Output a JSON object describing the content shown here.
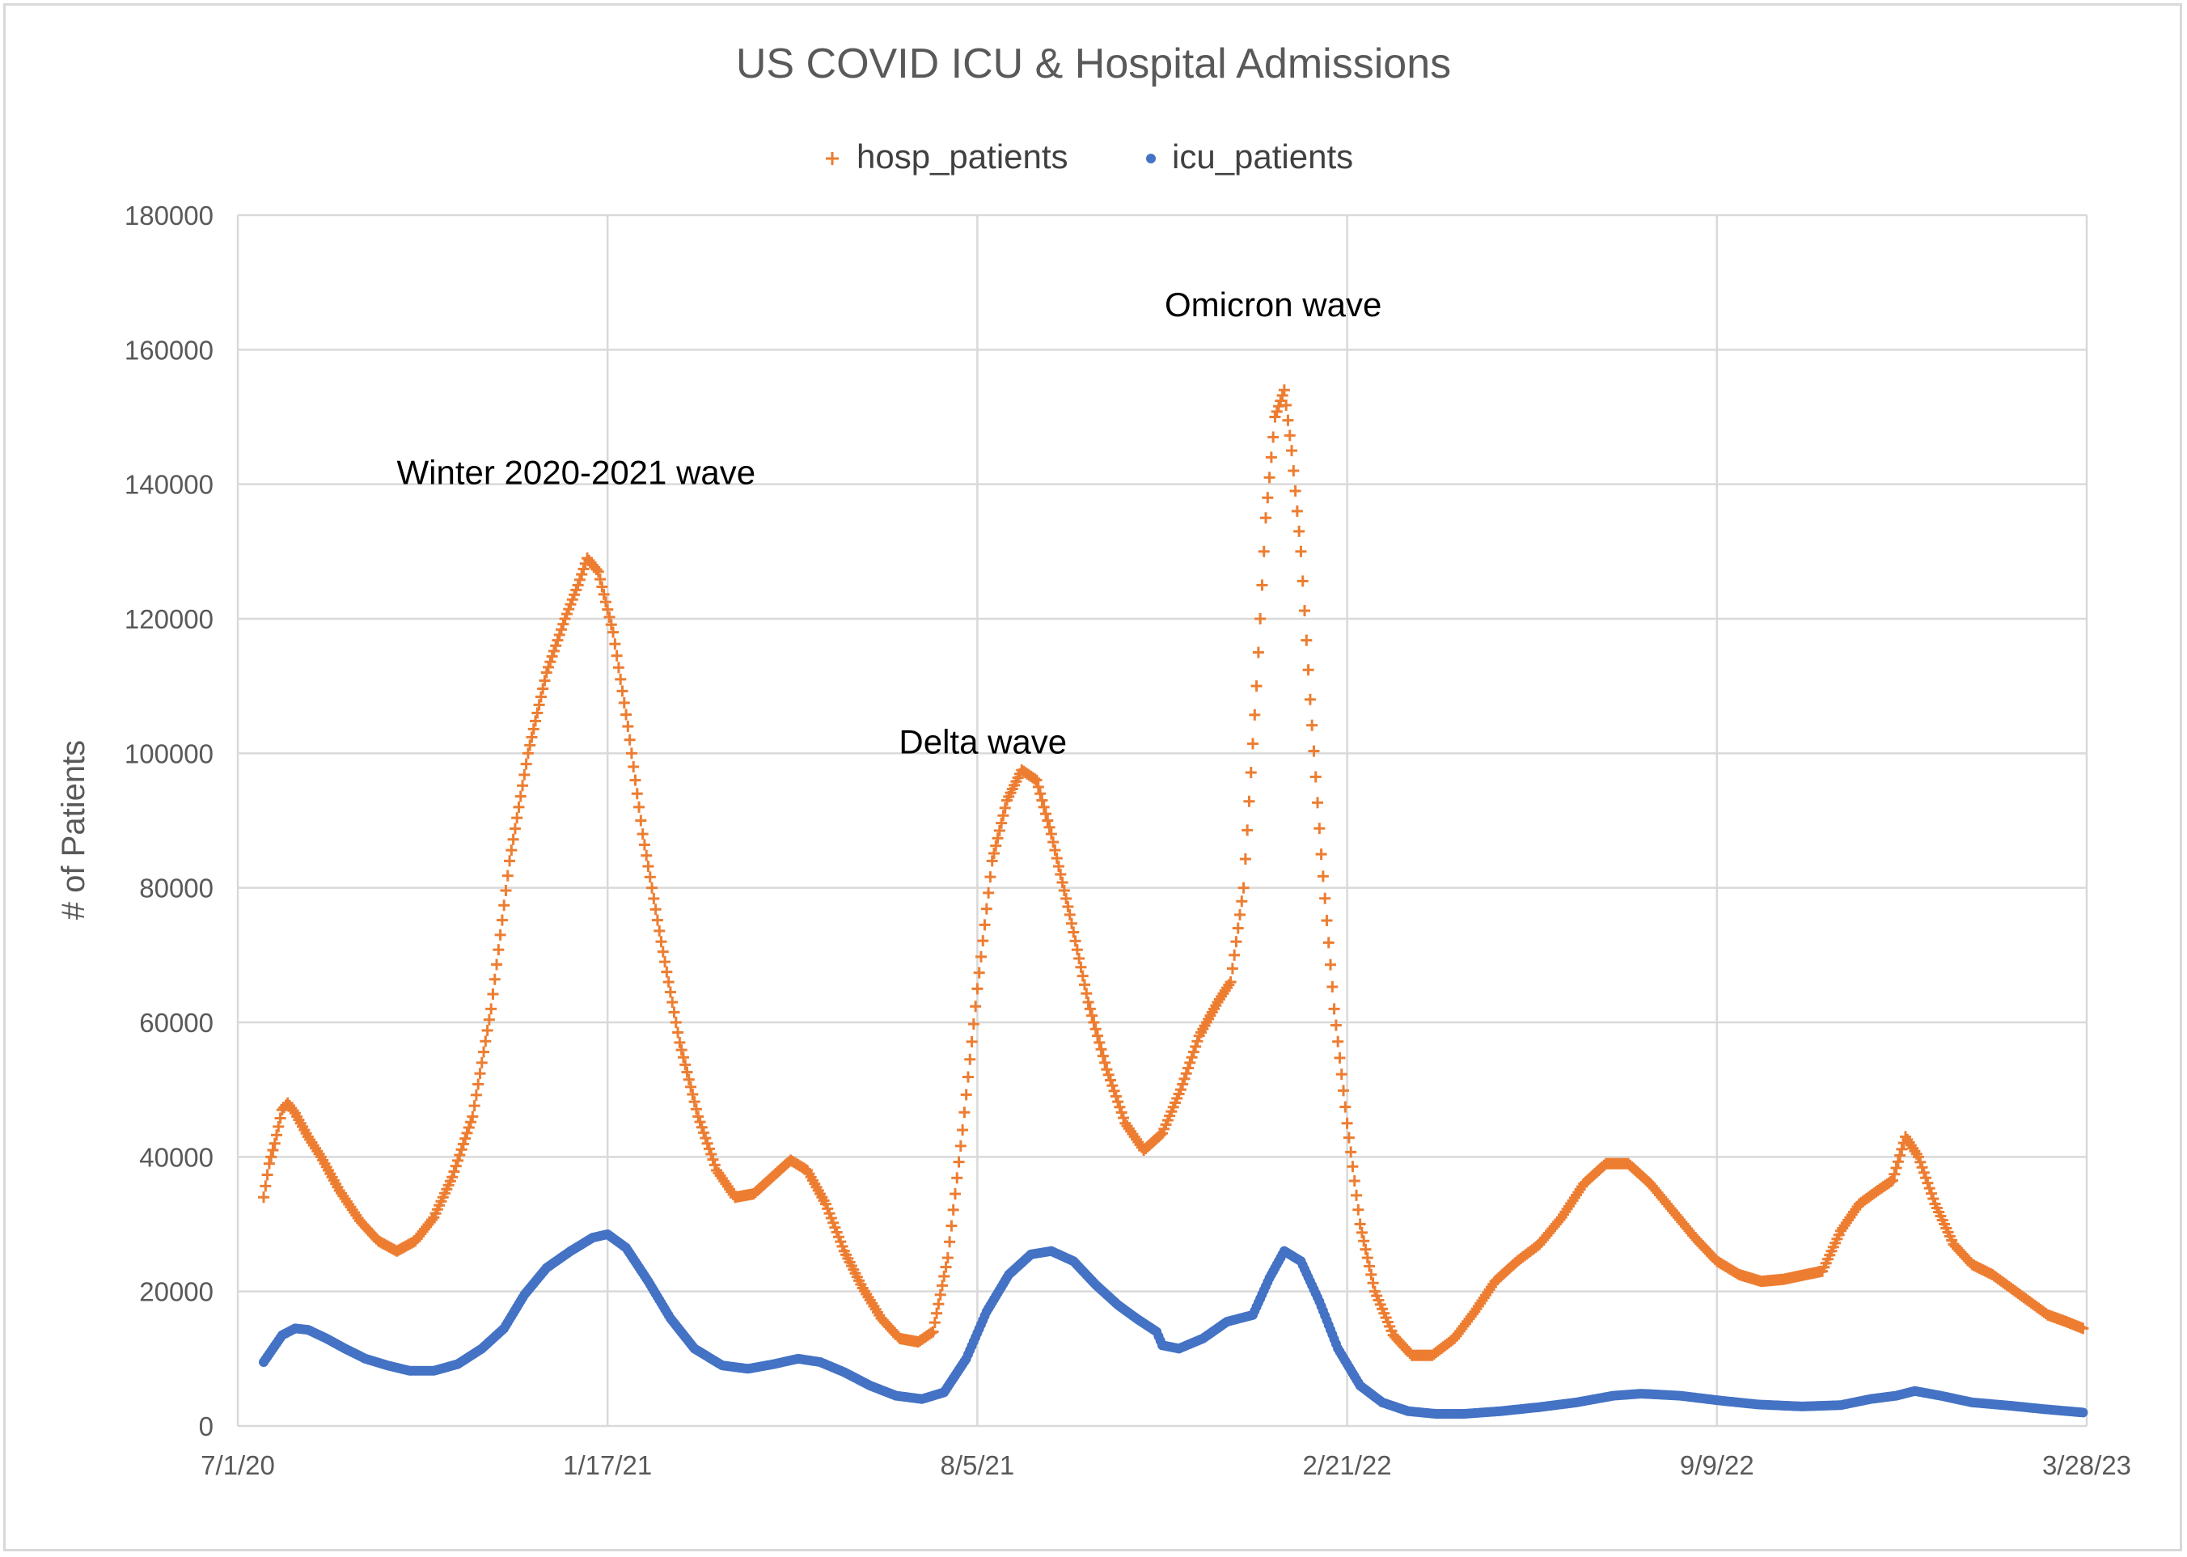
{
  "chart_data": {
    "type": "scatter",
    "title": "US COVID ICU & Hospital Admissions",
    "xlabel": "",
    "ylabel": "# of  Patients",
    "ylim": [
      0,
      180000
    ],
    "y_ticks": [
      "0",
      "20000",
      "40000",
      "60000",
      "80000",
      "100000",
      "120000",
      "140000",
      "160000",
      "180000"
    ],
    "x_ticks": [
      "7/1/20",
      "1/17/21",
      "8/5/21",
      "2/21/22",
      "9/9/22",
      "3/28/23"
    ],
    "xlim": [
      "2020-07-01",
      "2023-03-28"
    ],
    "grid": true,
    "legend_position": "top",
    "annotations": [
      {
        "text": "Winter 2020-2021 wave",
        "x": "2020-12-31",
        "y": 140000
      },
      {
        "text": "Delta wave",
        "x": "2021-08-08",
        "y": 100000
      },
      {
        "text": "Omicron wave",
        "x": "2022-01-12",
        "y": 165000
      }
    ],
    "series": [
      {
        "name": "hosp_patients",
        "marker": "plus",
        "color": "#ed7d31",
        "points": [
          [
            "2020-07-15",
            34000
          ],
          [
            "2020-07-18",
            39000
          ],
          [
            "2020-07-21",
            42000
          ],
          [
            "2020-07-25",
            47000
          ],
          [
            "2020-07-28",
            48000
          ],
          [
            "2020-08-01",
            46500
          ],
          [
            "2020-08-08",
            43000
          ],
          [
            "2020-08-15",
            40000
          ],
          [
            "2020-08-25",
            35000
          ],
          [
            "2020-09-05",
            30500
          ],
          [
            "2020-09-15",
            27500
          ],
          [
            "2020-09-25",
            26000
          ],
          [
            "2020-10-05",
            27500
          ],
          [
            "2020-10-15",
            31000
          ],
          [
            "2020-10-25",
            37000
          ],
          [
            "2020-11-05",
            46000
          ],
          [
            "2020-11-15",
            62000
          ],
          [
            "2020-11-25",
            84000
          ],
          [
            "2020-12-05",
            100000
          ],
          [
            "2020-12-15",
            112000
          ],
          [
            "2020-12-25",
            120000
          ],
          [
            "2021-01-01",
            125000
          ],
          [
            "2021-01-06",
            129000
          ],
          [
            "2021-01-12",
            127000
          ],
          [
            "2021-01-20",
            118000
          ],
          [
            "2021-01-28",
            104000
          ],
          [
            "2021-02-05",
            88000
          ],
          [
            "2021-02-15",
            72000
          ],
          [
            "2021-02-25",
            57000
          ],
          [
            "2021-03-07",
            46000
          ],
          [
            "2021-03-17",
            38000
          ],
          [
            "2021-03-27",
            34000
          ],
          [
            "2021-04-06",
            34500
          ],
          [
            "2021-04-16",
            37000
          ],
          [
            "2021-04-26",
            39500
          ],
          [
            "2021-05-05",
            38000
          ],
          [
            "2021-05-15",
            33000
          ],
          [
            "2021-05-25",
            26000
          ],
          [
            "2021-06-04",
            20500
          ],
          [
            "2021-06-14",
            16000
          ],
          [
            "2021-06-24",
            13000
          ],
          [
            "2021-07-04",
            12500
          ],
          [
            "2021-07-12",
            14000
          ],
          [
            "2021-07-20",
            25000
          ],
          [
            "2021-07-28",
            44000
          ],
          [
            "2021-08-05",
            65000
          ],
          [
            "2021-08-13",
            84000
          ],
          [
            "2021-08-21",
            93000
          ],
          [
            "2021-08-29",
            97500
          ],
          [
            "2021-09-06",
            96000
          ],
          [
            "2021-09-14",
            88000
          ],
          [
            "2021-09-24",
            76000
          ],
          [
            "2021-10-04",
            63000
          ],
          [
            "2021-10-14",
            53000
          ],
          [
            "2021-10-24",
            45000
          ],
          [
            "2021-11-03",
            41000
          ],
          [
            "2021-11-13",
            43500
          ],
          [
            "2021-11-23",
            50000
          ],
          [
            "2021-12-03",
            58000
          ],
          [
            "2021-12-13",
            63000
          ],
          [
            "2021-12-20",
            66000
          ],
          [
            "2021-12-27",
            80000
          ],
          [
            "2022-01-03",
            110000
          ],
          [
            "2022-01-08",
            135000
          ],
          [
            "2022-01-13",
            150000
          ],
          [
            "2022-01-18",
            154000
          ],
          [
            "2022-01-22",
            145000
          ],
          [
            "2022-01-27",
            130000
          ],
          [
            "2022-02-01",
            108000
          ],
          [
            "2022-02-07",
            85000
          ],
          [
            "2022-02-14",
            62000
          ],
          [
            "2022-02-21",
            45000
          ],
          [
            "2022-02-28",
            30000
          ],
          [
            "2022-03-08",
            20000
          ],
          [
            "2022-03-18",
            13500
          ],
          [
            "2022-03-28",
            10500
          ],
          [
            "2022-04-08",
            10500
          ],
          [
            "2022-04-20",
            13000
          ],
          [
            "2022-05-01",
            17000
          ],
          [
            "2022-05-12",
            21500
          ],
          [
            "2022-05-24",
            24500
          ],
          [
            "2022-06-05",
            27000
          ],
          [
            "2022-06-17",
            31000
          ],
          [
            "2022-06-29",
            36000
          ],
          [
            "2022-07-11",
            39000
          ],
          [
            "2022-07-23",
            39000
          ],
          [
            "2022-08-04",
            36000
          ],
          [
            "2022-08-16",
            32000
          ],
          [
            "2022-08-28",
            28000
          ],
          [
            "2022-09-09",
            24500
          ],
          [
            "2022-09-21",
            22500
          ],
          [
            "2022-10-03",
            21500
          ],
          [
            "2022-10-15",
            21800
          ],
          [
            "2022-10-27",
            22500
          ],
          [
            "2022-11-05",
            23000
          ],
          [
            "2022-11-15",
            29000
          ],
          [
            "2022-11-25",
            33000
          ],
          [
            "2022-12-05",
            35000
          ],
          [
            "2022-12-13",
            36500
          ],
          [
            "2022-12-20",
            43000
          ],
          [
            "2022-12-27",
            40000
          ],
          [
            "2023-01-05",
            33000
          ],
          [
            "2023-01-15",
            27000
          ],
          [
            "2023-01-25",
            24000
          ],
          [
            "2023-02-05",
            22500
          ],
          [
            "2023-02-15",
            20500
          ],
          [
            "2023-02-25",
            18500
          ],
          [
            "2023-03-07",
            16500
          ],
          [
            "2023-03-17",
            15500
          ],
          [
            "2023-03-26",
            14500
          ]
        ]
      },
      {
        "name": "icu_patients",
        "marker": "dot",
        "color": "#4472c4",
        "points": [
          [
            "2020-07-15",
            9500
          ],
          [
            "2020-07-20",
            11500
          ],
          [
            "2020-07-25",
            13500
          ],
          [
            "2020-08-01",
            14500
          ],
          [
            "2020-08-08",
            14300
          ],
          [
            "2020-08-18",
            13000
          ],
          [
            "2020-08-28",
            11500
          ],
          [
            "2020-09-08",
            10000
          ],
          [
            "2020-09-20",
            9000
          ],
          [
            "2020-10-02",
            8200
          ],
          [
            "2020-10-15",
            8200
          ],
          [
            "2020-10-28",
            9200
          ],
          [
            "2020-11-10",
            11500
          ],
          [
            "2020-11-22",
            14500
          ],
          [
            "2020-12-03",
            19500
          ],
          [
            "2020-12-15",
            23500
          ],
          [
            "2020-12-28",
            26000
          ],
          [
            "2021-01-09",
            28000
          ],
          [
            "2021-01-17",
            28500
          ],
          [
            "2021-01-27",
            26500
          ],
          [
            "2021-02-08",
            21500
          ],
          [
            "2021-02-20",
            16000
          ],
          [
            "2021-03-05",
            11500
          ],
          [
            "2021-03-20",
            9000
          ],
          [
            "2021-04-03",
            8500
          ],
          [
            "2021-04-17",
            9200
          ],
          [
            "2021-04-30",
            10000
          ],
          [
            "2021-05-12",
            9500
          ],
          [
            "2021-05-25",
            8000
          ],
          [
            "2021-06-08",
            6000
          ],
          [
            "2021-06-22",
            4500
          ],
          [
            "2021-07-06",
            4000
          ],
          [
            "2021-07-18",
            5000
          ],
          [
            "2021-07-30",
            10000
          ],
          [
            "2021-08-10",
            17000
          ],
          [
            "2021-08-22",
            22500
          ],
          [
            "2021-09-03",
            25500
          ],
          [
            "2021-09-14",
            26000
          ],
          [
            "2021-09-26",
            24500
          ],
          [
            "2021-10-08",
            21000
          ],
          [
            "2021-10-20",
            18000
          ],
          [
            "2021-10-30",
            16000
          ],
          [
            "2021-11-10",
            14000
          ],
          [
            "2021-11-13",
            12000
          ],
          [
            "2021-11-22",
            11500
          ],
          [
            "2021-12-05",
            13000
          ],
          [
            "2021-12-18",
            15500
          ],
          [
            "2022-01-01",
            16500
          ],
          [
            "2022-01-10",
            22000
          ],
          [
            "2022-01-18",
            26000
          ],
          [
            "2022-01-27",
            24500
          ],
          [
            "2022-02-06",
            18500
          ],
          [
            "2022-02-16",
            11500
          ],
          [
            "2022-02-28",
            6000
          ],
          [
            "2022-03-12",
            3500
          ],
          [
            "2022-03-26",
            2200
          ],
          [
            "2022-04-10",
            1800
          ],
          [
            "2022-04-25",
            1800
          ],
          [
            "2022-05-15",
            2200
          ],
          [
            "2022-06-05",
            2800
          ],
          [
            "2022-06-25",
            3500
          ],
          [
            "2022-07-15",
            4500
          ],
          [
            "2022-07-30",
            4800
          ],
          [
            "2022-08-20",
            4500
          ],
          [
            "2022-09-10",
            3800
          ],
          [
            "2022-10-01",
            3200
          ],
          [
            "2022-10-25",
            2900
          ],
          [
            "2022-11-15",
            3100
          ],
          [
            "2022-12-01",
            4000
          ],
          [
            "2022-12-15",
            4500
          ],
          [
            "2022-12-25",
            5200
          ],
          [
            "2023-01-08",
            4500
          ],
          [
            "2023-01-25",
            3500
          ],
          [
            "2023-02-15",
            3000
          ],
          [
            "2023-03-05",
            2500
          ],
          [
            "2023-03-26",
            2000
          ]
        ]
      }
    ]
  }
}
